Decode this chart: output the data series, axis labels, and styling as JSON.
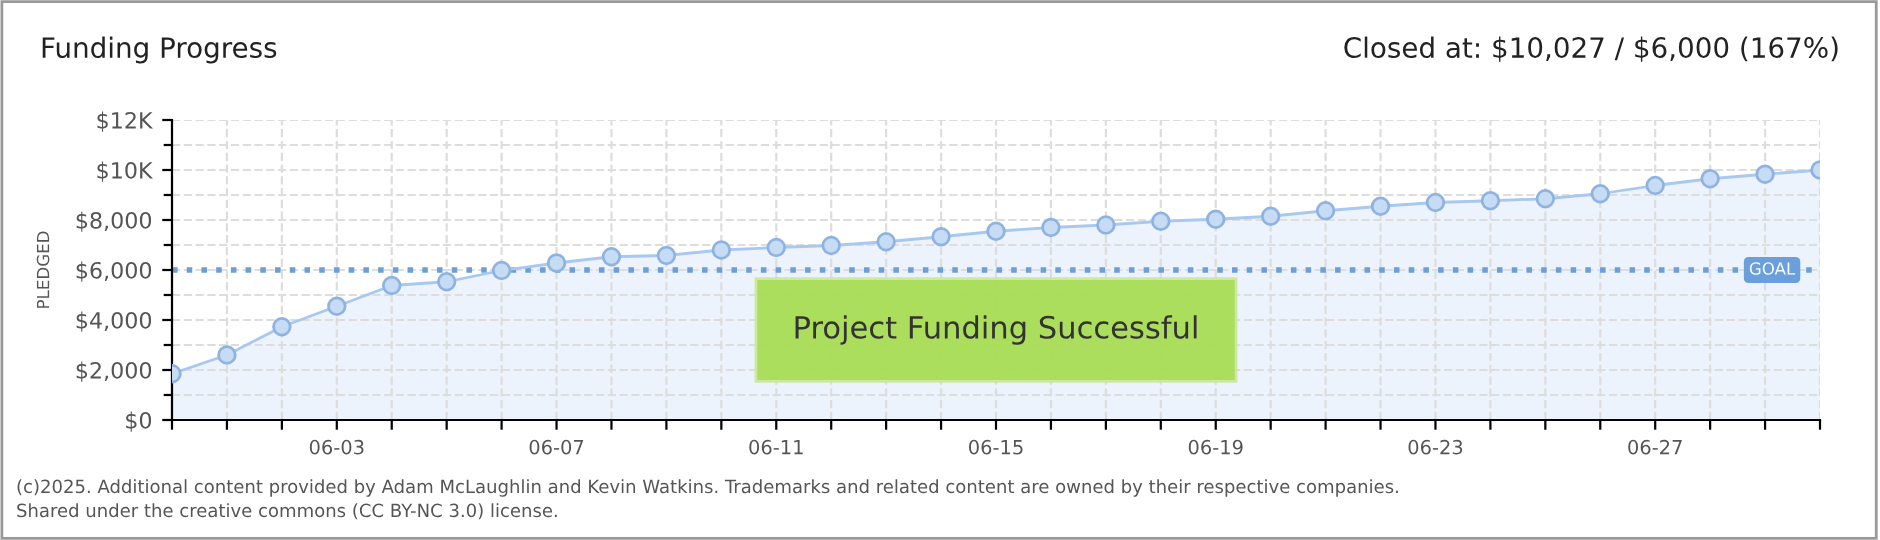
{
  "chart_data": {
    "type": "area",
    "title": "Funding Progress",
    "subtitle": "Closed at: $10,027 / $6,000 (167%)",
    "ylabel": "PLEDGED",
    "categories": [
      null,
      null,
      null,
      "06-03",
      null,
      null,
      null,
      "06-07",
      null,
      null,
      null,
      "06-11",
      null,
      null,
      null,
      "06-15",
      null,
      null,
      null,
      "06-19",
      null,
      null,
      null,
      "06-23",
      null,
      null,
      null,
      "06-27",
      null,
      null,
      null
    ],
    "series": [
      {
        "color": "#a9c8ef",
        "values": [
          1850,
          2600,
          3730,
          4550,
          5380,
          5530,
          5980,
          6280,
          6530,
          6580,
          6800,
          6900,
          6980,
          7130,
          7330,
          7550,
          7700,
          7800,
          7950,
          8030,
          8150,
          8370,
          8550,
          8700,
          8770,
          8850,
          9050,
          9380,
          9650,
          9830,
          10000
        ]
      }
    ],
    "ylim": [
      0,
      12000
    ],
    "yticks": [
      {
        "value": 0,
        "label": "$0"
      },
      {
        "value": 1000,
        "label": null
      },
      {
        "value": 2000,
        "label": "$2,000"
      },
      {
        "value": 3000,
        "label": null
      },
      {
        "value": 4000,
        "label": "$4,000"
      },
      {
        "value": 5000,
        "label": null
      },
      {
        "value": 6000,
        "label": "$6,000"
      },
      {
        "value": 7000,
        "label": null
      },
      {
        "value": 8000,
        "label": "$8,000"
      },
      {
        "value": 9000,
        "label": null
      },
      {
        "value": 10000,
        "label": "$10K"
      },
      {
        "value": 11000,
        "label": null
      },
      {
        "value": 12000,
        "label": "$12K"
      }
    ],
    "ref_lines": [
      {
        "axis": "y",
        "value": 6000,
        "label": "GOAL",
        "color": "#6a9fdc",
        "line_style": "dotted"
      }
    ],
    "annotations": [
      "Project Funding Successful",
      "(c)2025. Additional content provided by Adam McLaughlin and Kevin Watkins. Trademarks and related content are owned by their respective companies.",
      "Shared under the creative commons (CC BY-NC 3.0) license."
    ],
    "grid": true,
    "marker": "circle",
    "line_style": "solid"
  }
}
